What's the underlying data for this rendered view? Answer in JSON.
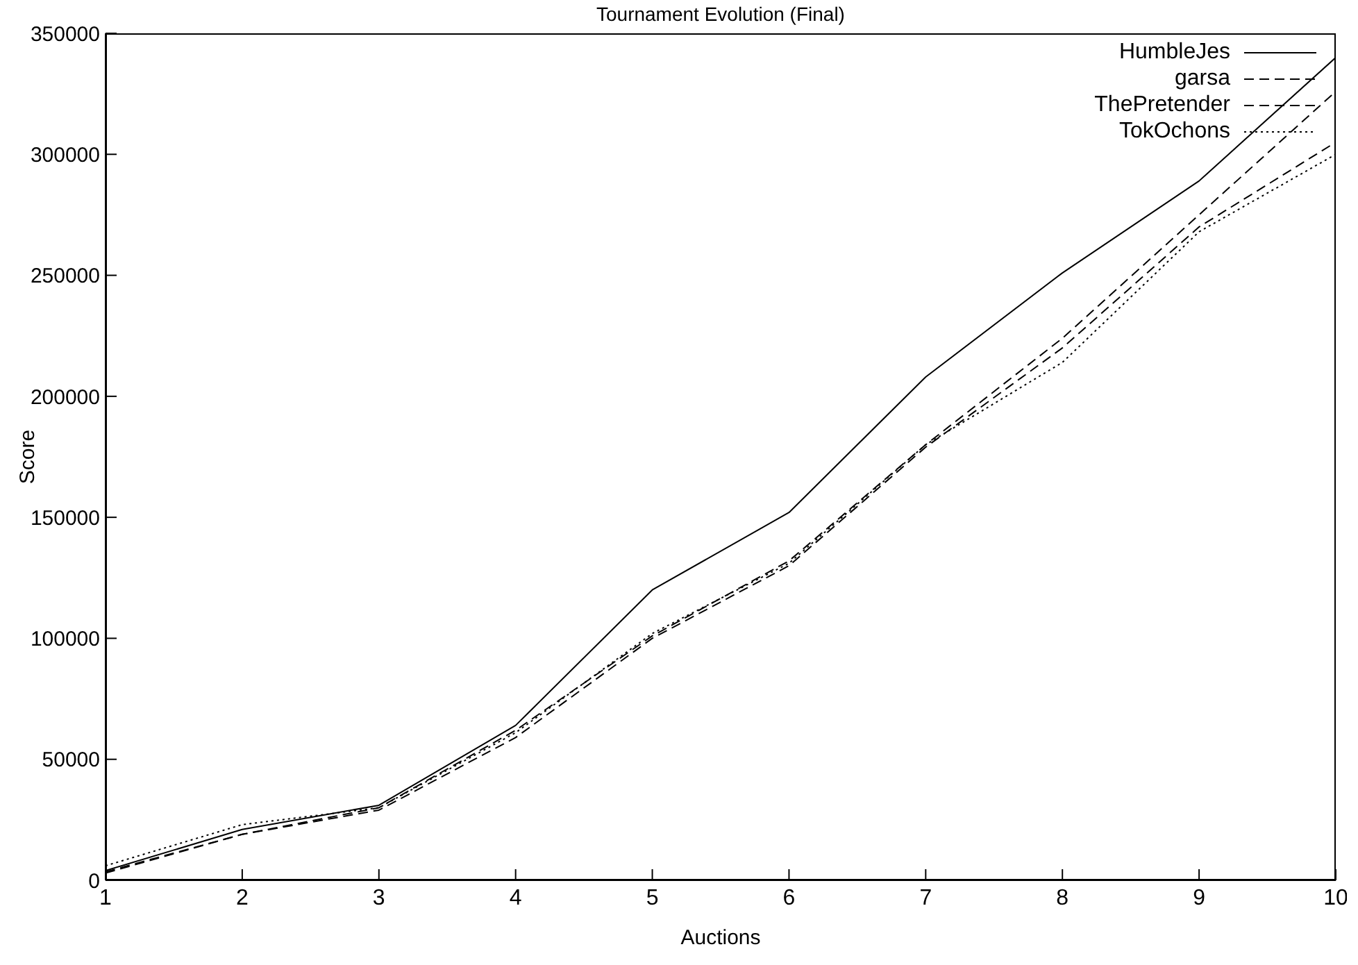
{
  "chart_data": {
    "type": "line",
    "title": "Tournament Evolution (Final)",
    "xlabel": "Auctions",
    "ylabel": "Score",
    "x": [
      1,
      2,
      3,
      4,
      5,
      6,
      7,
      8,
      9,
      10
    ],
    "series": [
      {
        "name": "HumbleJes",
        "color": "#000000",
        "line_style": "solid",
        "values": [
          4000,
          21000,
          31000,
          64000,
          120000,
          152000,
          208000,
          251000,
          289000,
          340000
        ]
      },
      {
        "name": "garsa",
        "color": "#000000",
        "line_style": "dashed",
        "values": [
          3000,
          19000,
          30000,
          62000,
          101000,
          132000,
          180000,
          224000,
          275000,
          326000
        ]
      },
      {
        "name": "ThePretender",
        "color": "#000000",
        "line_style": "dashed",
        "values": [
          3500,
          19000,
          29000,
          59000,
          100000,
          130000,
          179000,
          220000,
          270000,
          305000
        ]
      },
      {
        "name": "TokOchons",
        "color": "#000000",
        "line_style": "dotted",
        "values": [
          6000,
          23000,
          30000,
          61000,
          102000,
          131000,
          180000,
          214000,
          268000,
          300000
        ]
      }
    ],
    "xlim": [
      1,
      10
    ],
    "xticks": [
      1,
      2,
      3,
      4,
      5,
      6,
      7,
      8,
      9,
      10
    ],
    "ylim": [
      0,
      350000
    ],
    "yticks": [
      0,
      50000,
      100000,
      150000,
      200000,
      250000,
      300000,
      350000
    ],
    "grid": false,
    "legend": "top right",
    "marker": "none"
  }
}
